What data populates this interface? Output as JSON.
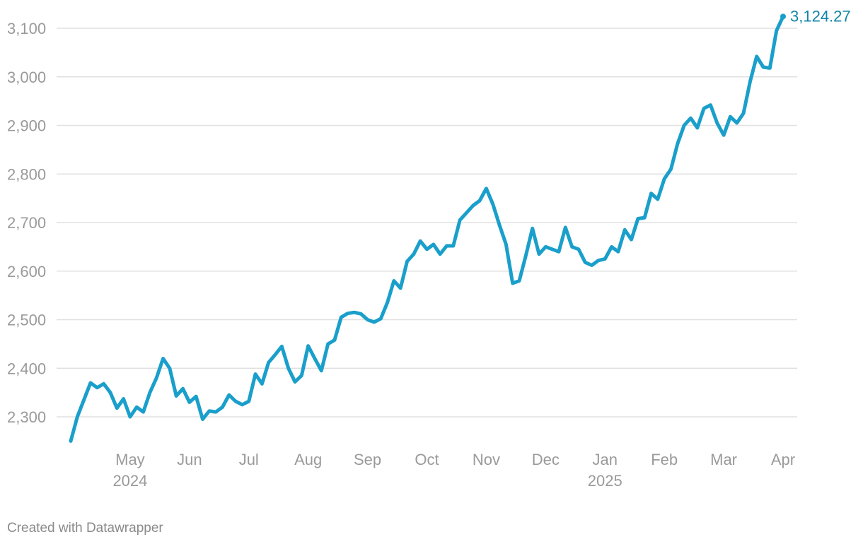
{
  "chart_data": {
    "type": "line",
    "categories": [
      null,
      null,
      null,
      null,
      null,
      null,
      null,
      null,
      null,
      "May",
      null,
      null,
      null,
      null,
      null,
      null,
      null,
      null,
      "Jun",
      null,
      null,
      null,
      null,
      null,
      null,
      null,
      null,
      "Jul",
      null,
      null,
      null,
      null,
      null,
      null,
      null,
      null,
      "Aug",
      null,
      null,
      null,
      null,
      null,
      null,
      null,
      null,
      "Sep",
      null,
      null,
      null,
      null,
      null,
      null,
      null,
      null,
      "Oct",
      null,
      null,
      null,
      null,
      null,
      null,
      null,
      null,
      "Nov",
      null,
      null,
      null,
      null,
      null,
      null,
      null,
      null,
      "Dec",
      null,
      null,
      null,
      null,
      null,
      null,
      null,
      null,
      "Jan",
      null,
      null,
      null,
      null,
      null,
      null,
      null,
      null,
      "Feb",
      null,
      null,
      null,
      null,
      null,
      null,
      null,
      null,
      "Mar",
      null,
      null,
      null,
      null,
      null,
      null,
      null,
      null,
      "Apr"
    ],
    "year_labels": [
      {
        "value": 9,
        "label": "2024"
      },
      {
        "value": 81,
        "label": "2025"
      }
    ],
    "series": [
      {
        "color": "#1a9fcb",
        "values": [
          2250,
          2300,
          2335,
          2370,
          2360,
          2368,
          2350,
          2318,
          2337,
          2300,
          2320,
          2310,
          2350,
          2380,
          2420,
          2400,
          2343,
          2358,
          2330,
          2342,
          2295,
          2312,
          2310,
          2320,
          2345,
          2332,
          2325,
          2332,
          2388,
          2368,
          2412,
          2428,
          2445,
          2400,
          2372,
          2385,
          2446,
          2420,
          2395,
          2450,
          2458,
          2505,
          2513,
          2515,
          2512,
          2500,
          2495,
          2502,
          2535,
          2580,
          2565,
          2620,
          2635,
          2662,
          2645,
          2655,
          2635,
          2652,
          2652,
          2705,
          2720,
          2735,
          2745,
          2770,
          2738,
          2695,
          2655,
          2575,
          2580,
          2632,
          2688,
          2635,
          2650,
          2645,
          2640,
          2690,
          2650,
          2645,
          2618,
          2612,
          2622,
          2625,
          2650,
          2640,
          2685,
          2665,
          2708,
          2710,
          2760,
          2748,
          2790,
          2810,
          2862,
          2900,
          2915,
          2895,
          2935,
          2942,
          2905,
          2880,
          2918,
          2905,
          2925,
          2990,
          3042,
          3020,
          3018,
          3095,
          3124.27
        ]
      }
    ],
    "end_label": "3,124.27",
    "ylim": [
      2240,
      3140
    ],
    "yticks": [
      {
        "value": 2300,
        "label": "2,300"
      },
      {
        "value": 2400,
        "label": "2,400"
      },
      {
        "value": 2500,
        "label": "2,500"
      },
      {
        "value": 2600,
        "label": "2,600"
      },
      {
        "value": 2700,
        "label": "2,700"
      },
      {
        "value": 2800,
        "label": "2,800"
      },
      {
        "value": 2900,
        "label": "2,900"
      },
      {
        "value": 3000,
        "label": "3,000"
      },
      {
        "value": 3100,
        "label": "3,100"
      }
    ],
    "grid": true,
    "credit": "Created with Datawrapper"
  }
}
